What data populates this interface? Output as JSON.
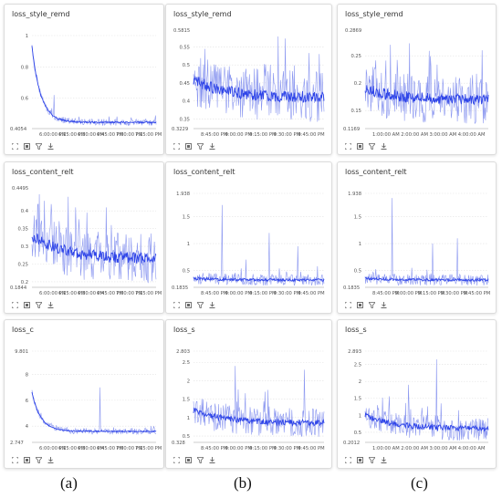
{
  "colors": {
    "line": "#2f45e8",
    "line_light": "#8c98f0",
    "grid": "#e2e2e2",
    "axis": "#bbbbbb"
  },
  "captions": [
    "(a)",
    "(b)",
    "(c)"
  ],
  "chart_data": [
    {
      "type": "line",
      "panel": "a",
      "title": "loss_style_remd",
      "ylim": [
        0.4054,
        1.0
      ],
      "yticks": [
        "1",
        "0.8",
        "0.6"
      ],
      "ytick_values": [
        1.0,
        0.8,
        0.6
      ],
      "ymin_label": "0.4054",
      "ymax_label": "",
      "xlabels": [
        "6:00:00 PM",
        "6:15:00 PM",
        "6:30:00 PM",
        "6:45:00 PM",
        "7:00:00 PM",
        "7:15:00 PM"
      ],
      "shape": "decay",
      "start": 0.93,
      "floor": 0.445,
      "noise": 0.012,
      "spikes": [
        [
          0.18,
          0.62
        ]
      ]
    },
    {
      "type": "line",
      "panel": "b",
      "title": "loss_style_remd",
      "ylim": [
        0.3229,
        0.5815
      ],
      "yticks": [
        "0.55",
        "0.5",
        "0.45",
        "0.4",
        "0.35"
      ],
      "ytick_values": [
        0.55,
        0.5,
        0.45,
        0.4,
        0.35
      ],
      "ymin_label": "0.3229",
      "ymax_label": "0.5815",
      "xlabels": [
        "8:45:00 PM",
        "9:00:00 PM",
        "9:15:00 PM",
        "9:30:00 PM",
        "9:45:00 PM"
      ],
      "shape": "noisy",
      "start": 0.46,
      "floor": 0.41,
      "noise": 0.04,
      "spikes": []
    },
    {
      "type": "line",
      "panel": "c",
      "title": "loss_style_remd",
      "ylim": [
        0.1169,
        0.2869
      ],
      "yticks": [
        "0.25",
        "0.2",
        "0.15"
      ],
      "ytick_values": [
        0.25,
        0.2,
        0.15
      ],
      "ymin_label": "0.1169",
      "ymax_label": "0.2869",
      "xlabels": [
        "1:00:00 AM",
        "2:00:00 AM",
        "3:00:00 AM",
        "4:00:00 AM"
      ],
      "shape": "noisy",
      "start": 0.19,
      "floor": 0.17,
      "noise": 0.025,
      "spikes": [
        [
          0.95,
          0.26
        ]
      ]
    },
    {
      "type": "line",
      "panel": "a",
      "title": "loss_content_relt",
      "ylim": [
        0.1844,
        0.4495
      ],
      "yticks": [
        "0.4",
        "0.35",
        "0.3",
        "0.25",
        "0.2"
      ],
      "ytick_values": [
        0.4,
        0.35,
        0.3,
        0.25,
        0.2
      ],
      "ymin_label": "0.1844",
      "ymax_label": "0.4495",
      "xlabels": [
        "6:00:00 PM",
        "6:15:00 PM",
        "6:30:00 PM",
        "6:45:00 PM",
        "7:00:00 PM",
        "7:15:00 PM"
      ],
      "shape": "noisy",
      "start": 0.33,
      "floor": 0.265,
      "noise": 0.04,
      "spikes": [
        [
          0.05,
          0.42
        ],
        [
          0.35,
          0.41
        ],
        [
          0.6,
          0.41
        ]
      ]
    },
    {
      "type": "line",
      "panel": "b",
      "title": "loss_content_relt",
      "ylim": [
        0.1835,
        1.938
      ],
      "yticks": [
        "1.938",
        "1.5",
        "1",
        "0.5"
      ],
      "ytick_values": [
        1.938,
        1.5,
        1.0,
        0.5
      ],
      "ymin_label": "0.1835",
      "ymax_label": "",
      "xlabels": [
        "8:45:00 PM",
        "9:00:00 PM",
        "9:15:00 PM",
        "9:30:00 PM",
        "9:45:00 PM"
      ],
      "shape": "flat",
      "start": 0.35,
      "floor": 0.32,
      "noise": 0.06,
      "spikes": [
        [
          0.22,
          1.72
        ],
        [
          0.58,
          1.2
        ],
        [
          0.8,
          0.95
        ],
        [
          0.4,
          0.7
        ]
      ]
    },
    {
      "type": "line",
      "panel": "c",
      "title": "loss_content_relt",
      "ylim": [
        0.1835,
        1.938
      ],
      "yticks": [
        "1.938",
        "1.5",
        "1",
        "0.5"
      ],
      "ytick_values": [
        1.938,
        1.5,
        1.0,
        0.5
      ],
      "ymin_label": "0.1835",
      "ymax_label": "",
      "xlabels": [
        "8:45:00 PM",
        "9:00:00 PM",
        "9:15:00 PM",
        "9:30:00 PM",
        "9:45:00 PM"
      ],
      "shape": "flat",
      "start": 0.35,
      "floor": 0.32,
      "noise": 0.06,
      "spikes": [
        [
          0.22,
          1.85
        ],
        [
          0.55,
          1.0
        ],
        [
          0.75,
          1.1
        ]
      ]
    },
    {
      "type": "line",
      "panel": "a",
      "title": "loss_c",
      "ylim": [
        2.747,
        9.801
      ],
      "yticks": [
        "9.801",
        "8",
        "6",
        "4"
      ],
      "ytick_values": [
        9.801,
        8,
        6,
        4
      ],
      "ymin_label": "2.747",
      "ymax_label": "",
      "xlabels": [
        "6:00:00 PM",
        "6:15:00 PM",
        "6:30:00 PM",
        "6:45:00 PM",
        "7:00:00 PM",
        "7:15:00 PM"
      ],
      "shape": "decay",
      "start": 6.6,
      "floor": 3.6,
      "noise": 0.12,
      "spikes": [
        [
          0.55,
          7.0
        ]
      ]
    },
    {
      "type": "line",
      "panel": "b",
      "title": "loss_s",
      "ylim": [
        0.328,
        2.803
      ],
      "yticks": [
        "2.803",
        "2.5",
        "2",
        "1.5",
        "1",
        "0.5"
      ],
      "ytick_values": [
        2.803,
        2.5,
        2,
        1.5,
        1,
        0.5
      ],
      "ymin_label": "0.328",
      "ymax_label": "",
      "xlabels": [
        "8:45:00 PM",
        "9:00:00 PM",
        "9:15:00 PM",
        "9:30:00 PM",
        "9:45:00 PM"
      ],
      "shape": "noisy",
      "start": 1.2,
      "floor": 0.85,
      "noise": 0.22,
      "spikes": [
        [
          0.32,
          2.4
        ],
        [
          0.85,
          2.3
        ],
        [
          0.55,
          1.7
        ]
      ]
    },
    {
      "type": "line",
      "panel": "c",
      "title": "loss_s",
      "ylim": [
        0.2012,
        2.893
      ],
      "yticks": [
        "2.893",
        "2.5",
        "2",
        "1.5",
        "1",
        "0.5"
      ],
      "ytick_values": [
        2.893,
        2.5,
        2,
        1.5,
        1,
        0.5
      ],
      "ymin_label": "0.2012",
      "ymax_label": "",
      "xlabels": [
        "1:00:00 AM",
        "2:00:00 AM",
        "3:00:00 AM",
        "4:00:00 AM"
      ],
      "shape": "noisy",
      "start": 1.0,
      "floor": 0.6,
      "noise": 0.2,
      "spikes": [
        [
          0.58,
          2.65
        ],
        [
          0.35,
          1.9
        ],
        [
          0.1,
          1.3
        ]
      ]
    }
  ]
}
